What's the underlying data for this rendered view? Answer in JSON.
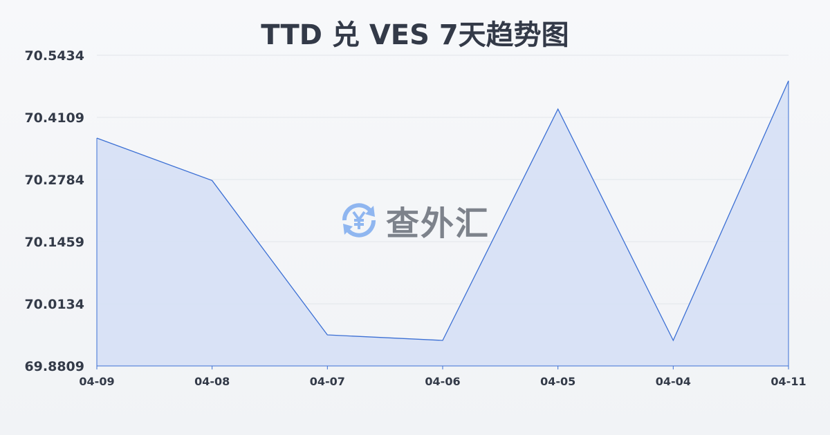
{
  "chart_data": {
    "type": "area",
    "title": "TTD 兑 VES 7天趋势图",
    "categories": [
      "04-09",
      "04-08",
      "04-07",
      "04-06",
      "04-05",
      "04-04",
      "04-11"
    ],
    "values": [
      70.3667,
      70.2763,
      69.9471,
      69.9354,
      70.4286,
      69.9354,
      70.4889
    ],
    "ylim": [
      69.8809,
      70.5434
    ],
    "yticks": [
      "69.8809",
      "70.0134",
      "70.1459",
      "70.2784",
      "70.4109",
      "70.5434"
    ],
    "grid": true,
    "line_color": "#3b6fd4",
    "fill_color": "#d6e0f5"
  },
  "watermark": {
    "text": "查外汇",
    "icon": "yen-exchange-icon"
  }
}
